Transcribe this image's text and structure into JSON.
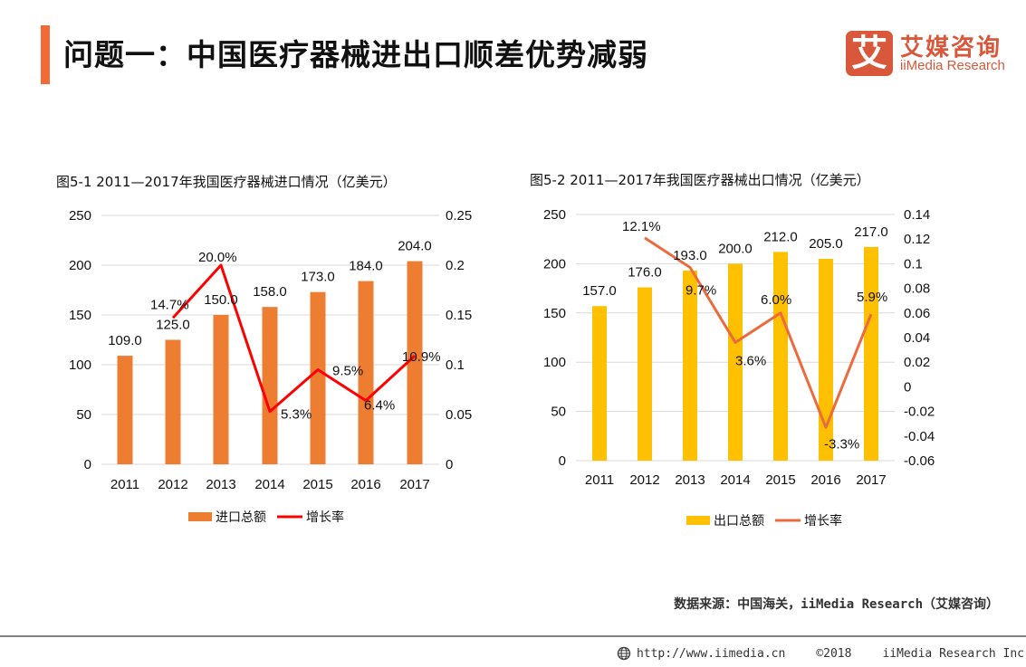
{
  "header": {
    "title": "问题一：中国医疗器械进出口顺差优势减弱",
    "accent_color": "#F26B36"
  },
  "logo": {
    "mark": "艾",
    "name_cn": "艾媒咨询",
    "name_en": "iiMedia Research",
    "color": "#D9573A"
  },
  "chart_data": [
    {
      "type": "bar",
      "title": "图5-1  2011—2017年我国医疗器械进口情况（亿美元）",
      "categories": [
        "2011",
        "2012",
        "2013",
        "2014",
        "2015",
        "2016",
        "2017"
      ],
      "series": [
        {
          "name": "进口总额",
          "kind": "bar",
          "axis": "left",
          "color": "#ED7D31",
          "values": [
            109.0,
            125.0,
            150.0,
            158.0,
            173.0,
            184.0,
            204.0
          ],
          "labels": [
            "109.0",
            "125.0",
            "150.0",
            "158.0",
            "173.0",
            "184.0",
            "204.0"
          ]
        },
        {
          "name": "增长率",
          "kind": "line",
          "axis": "right",
          "color": "#FF0000",
          "values": [
            null,
            0.147,
            0.2,
            0.053,
            0.095,
            0.064,
            0.109
          ],
          "labels": [
            null,
            "14.7%",
            "20.0%",
            "5.3%",
            "9.5%",
            "6.4%",
            "10.9%"
          ]
        }
      ],
      "ylim_left": [
        0,
        250
      ],
      "yticks_left": [
        "0",
        "50",
        "100",
        "150",
        "200",
        "250"
      ],
      "ylim_right": [
        0,
        0.25
      ],
      "yticks_right": [
        "0",
        "0.05",
        "0.1",
        "0.15",
        "0.2",
        "0.25"
      ],
      "grid": true,
      "legend": "bottom"
    },
    {
      "type": "bar",
      "title": "图5-2  2011—2017年我国医疗器械出口情况（亿美元）",
      "categories": [
        "2011",
        "2012",
        "2013",
        "2014",
        "2015",
        "2016",
        "2017"
      ],
      "series": [
        {
          "name": "出口总额",
          "kind": "bar",
          "axis": "left",
          "color": "#FFC000",
          "values": [
            157.0,
            176.0,
            193.0,
            200.0,
            212.0,
            205.0,
            217.0
          ],
          "labels": [
            "157.0",
            "176.0",
            "193.0",
            "200.0",
            "212.0",
            "205.0",
            "217.0"
          ]
        },
        {
          "name": "增长率",
          "kind": "line",
          "axis": "right",
          "color": "#ED6A3C",
          "values": [
            null,
            0.121,
            0.097,
            0.036,
            0.06,
            -0.033,
            0.059
          ],
          "labels": [
            null,
            "12.1%",
            "9.7%",
            "3.6%",
            "6.0%",
            "-3.3%",
            "5.9%"
          ]
        }
      ],
      "ylim_left": [
        0,
        250
      ],
      "yticks_left": [
        "0",
        "50",
        "100",
        "150",
        "200",
        "250"
      ],
      "ylim_right": [
        -0.06,
        0.14
      ],
      "yticks_right": [
        "-0.06",
        "-0.04",
        "-0.02",
        "0",
        "0.02",
        "0.04",
        "0.06",
        "0.08",
        "0.1",
        "0.12",
        "0.14"
      ],
      "grid": true,
      "legend": "bottom"
    }
  ],
  "source": "数据来源：中国海关，iiMedia Research（艾媒咨询）",
  "footer": {
    "url": "http://www.iimedia.cn",
    "copyright": "©2018",
    "company": "iiMedia Research  Inc"
  }
}
